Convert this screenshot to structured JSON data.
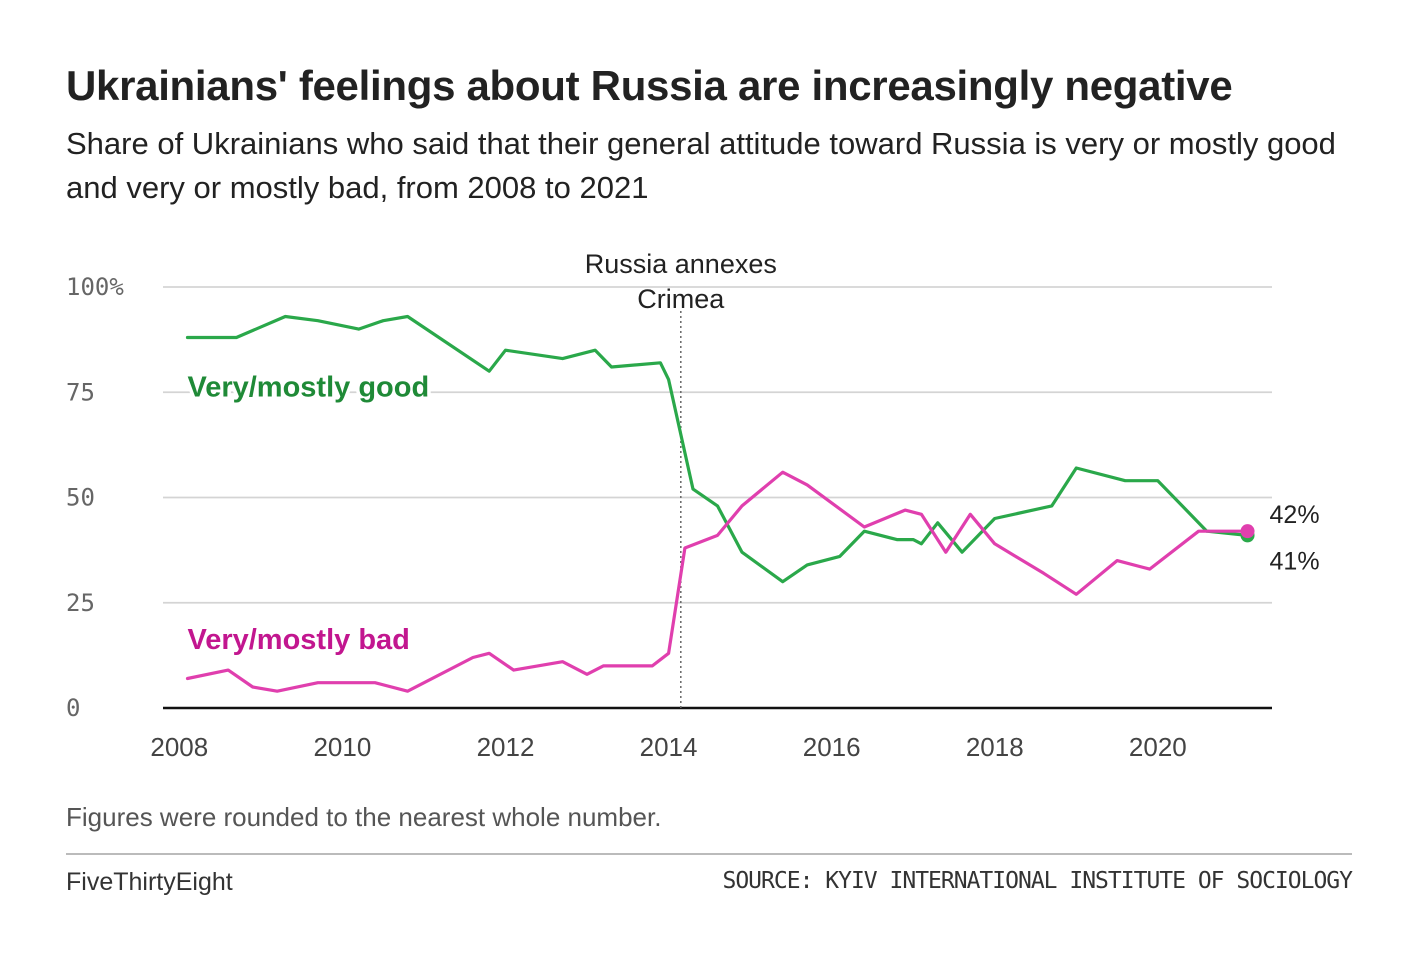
{
  "header": {
    "title": "Ukrainians' feelings about Russia are increasingly negative",
    "subtitle": "Share of Ukrainians who said that their general attitude toward Russia is very or mostly good and very or mostly bad, from 2008 to 2021"
  },
  "footer": {
    "note": "Figures were rounded to the nearest whole number.",
    "brand": "FiveThirtyEight",
    "source": "SOURCE: KYIV INTERNATIONAL INSTITUTE OF SOCIOLOGY"
  },
  "chart_data": {
    "type": "line",
    "title": "Ukrainians' feelings about Russia are increasingly negative",
    "xlabel": "",
    "ylabel": "",
    "xlim": [
      2007.8,
      2021.4
    ],
    "ylim": [
      0,
      100
    ],
    "x_ticks": [
      2008,
      2010,
      2012,
      2014,
      2016,
      2018,
      2020
    ],
    "x_tick_labels": [
      "2008",
      "2010",
      "2012",
      "2014",
      "2016",
      "2018",
      "2020"
    ],
    "y_ticks": [
      0,
      25,
      50,
      75,
      100
    ],
    "y_tick_labels": [
      "0",
      "25",
      "50",
      "75",
      "100%"
    ],
    "grid": true,
    "annotation": {
      "x": 2014.15,
      "lines": [
        "Russia annexes",
        "Crimea"
      ]
    },
    "series": [
      {
        "name": "Very/mostly good",
        "color": "#2aa84a",
        "label_color": "#1f8a37",
        "end_label": "41%",
        "points": [
          [
            2008.1,
            88
          ],
          [
            2008.7,
            88
          ],
          [
            2009.3,
            93
          ],
          [
            2009.7,
            92
          ],
          [
            2010.2,
            90
          ],
          [
            2010.5,
            92
          ],
          [
            2010.8,
            93
          ],
          [
            2011.8,
            80
          ],
          [
            2012.0,
            85
          ],
          [
            2012.7,
            83
          ],
          [
            2013.1,
            85
          ],
          [
            2013.3,
            81
          ],
          [
            2013.9,
            82
          ],
          [
            2014.0,
            78
          ],
          [
            2014.3,
            52
          ],
          [
            2014.6,
            48
          ],
          [
            2014.9,
            37
          ],
          [
            2015.4,
            30
          ],
          [
            2015.7,
            34
          ],
          [
            2016.1,
            36
          ],
          [
            2016.4,
            42
          ],
          [
            2016.8,
            40
          ],
          [
            2017.0,
            40
          ],
          [
            2017.1,
            39
          ],
          [
            2017.3,
            44
          ],
          [
            2017.6,
            37
          ],
          [
            2018.0,
            45
          ],
          [
            2018.7,
            48
          ],
          [
            2019.0,
            57
          ],
          [
            2019.6,
            54
          ],
          [
            2020.0,
            54
          ],
          [
            2020.6,
            42
          ],
          [
            2021.1,
            41
          ]
        ]
      },
      {
        "name": "Very/mostly bad",
        "color": "#e03fae",
        "label_color": "#c2168f",
        "end_label": "42%",
        "points": [
          [
            2008.1,
            7
          ],
          [
            2008.6,
            9
          ],
          [
            2008.9,
            5
          ],
          [
            2009.2,
            4
          ],
          [
            2009.7,
            6
          ],
          [
            2010.1,
            6
          ],
          [
            2010.4,
            6
          ],
          [
            2010.8,
            4
          ],
          [
            2011.6,
            12
          ],
          [
            2011.8,
            13
          ],
          [
            2012.1,
            9
          ],
          [
            2012.7,
            11
          ],
          [
            2013.0,
            8
          ],
          [
            2013.2,
            10
          ],
          [
            2013.8,
            10
          ],
          [
            2014.0,
            13
          ],
          [
            2014.2,
            38
          ],
          [
            2014.6,
            41
          ],
          [
            2014.9,
            48
          ],
          [
            2015.4,
            56
          ],
          [
            2015.7,
            53
          ],
          [
            2016.4,
            43
          ],
          [
            2016.9,
            47
          ],
          [
            2017.1,
            46
          ],
          [
            2017.4,
            37
          ],
          [
            2017.7,
            46
          ],
          [
            2018.0,
            39
          ],
          [
            2018.6,
            32
          ],
          [
            2019.0,
            27
          ],
          [
            2019.5,
            35
          ],
          [
            2019.9,
            33
          ],
          [
            2020.5,
            42
          ],
          [
            2021.1,
            42
          ]
        ]
      }
    ]
  }
}
